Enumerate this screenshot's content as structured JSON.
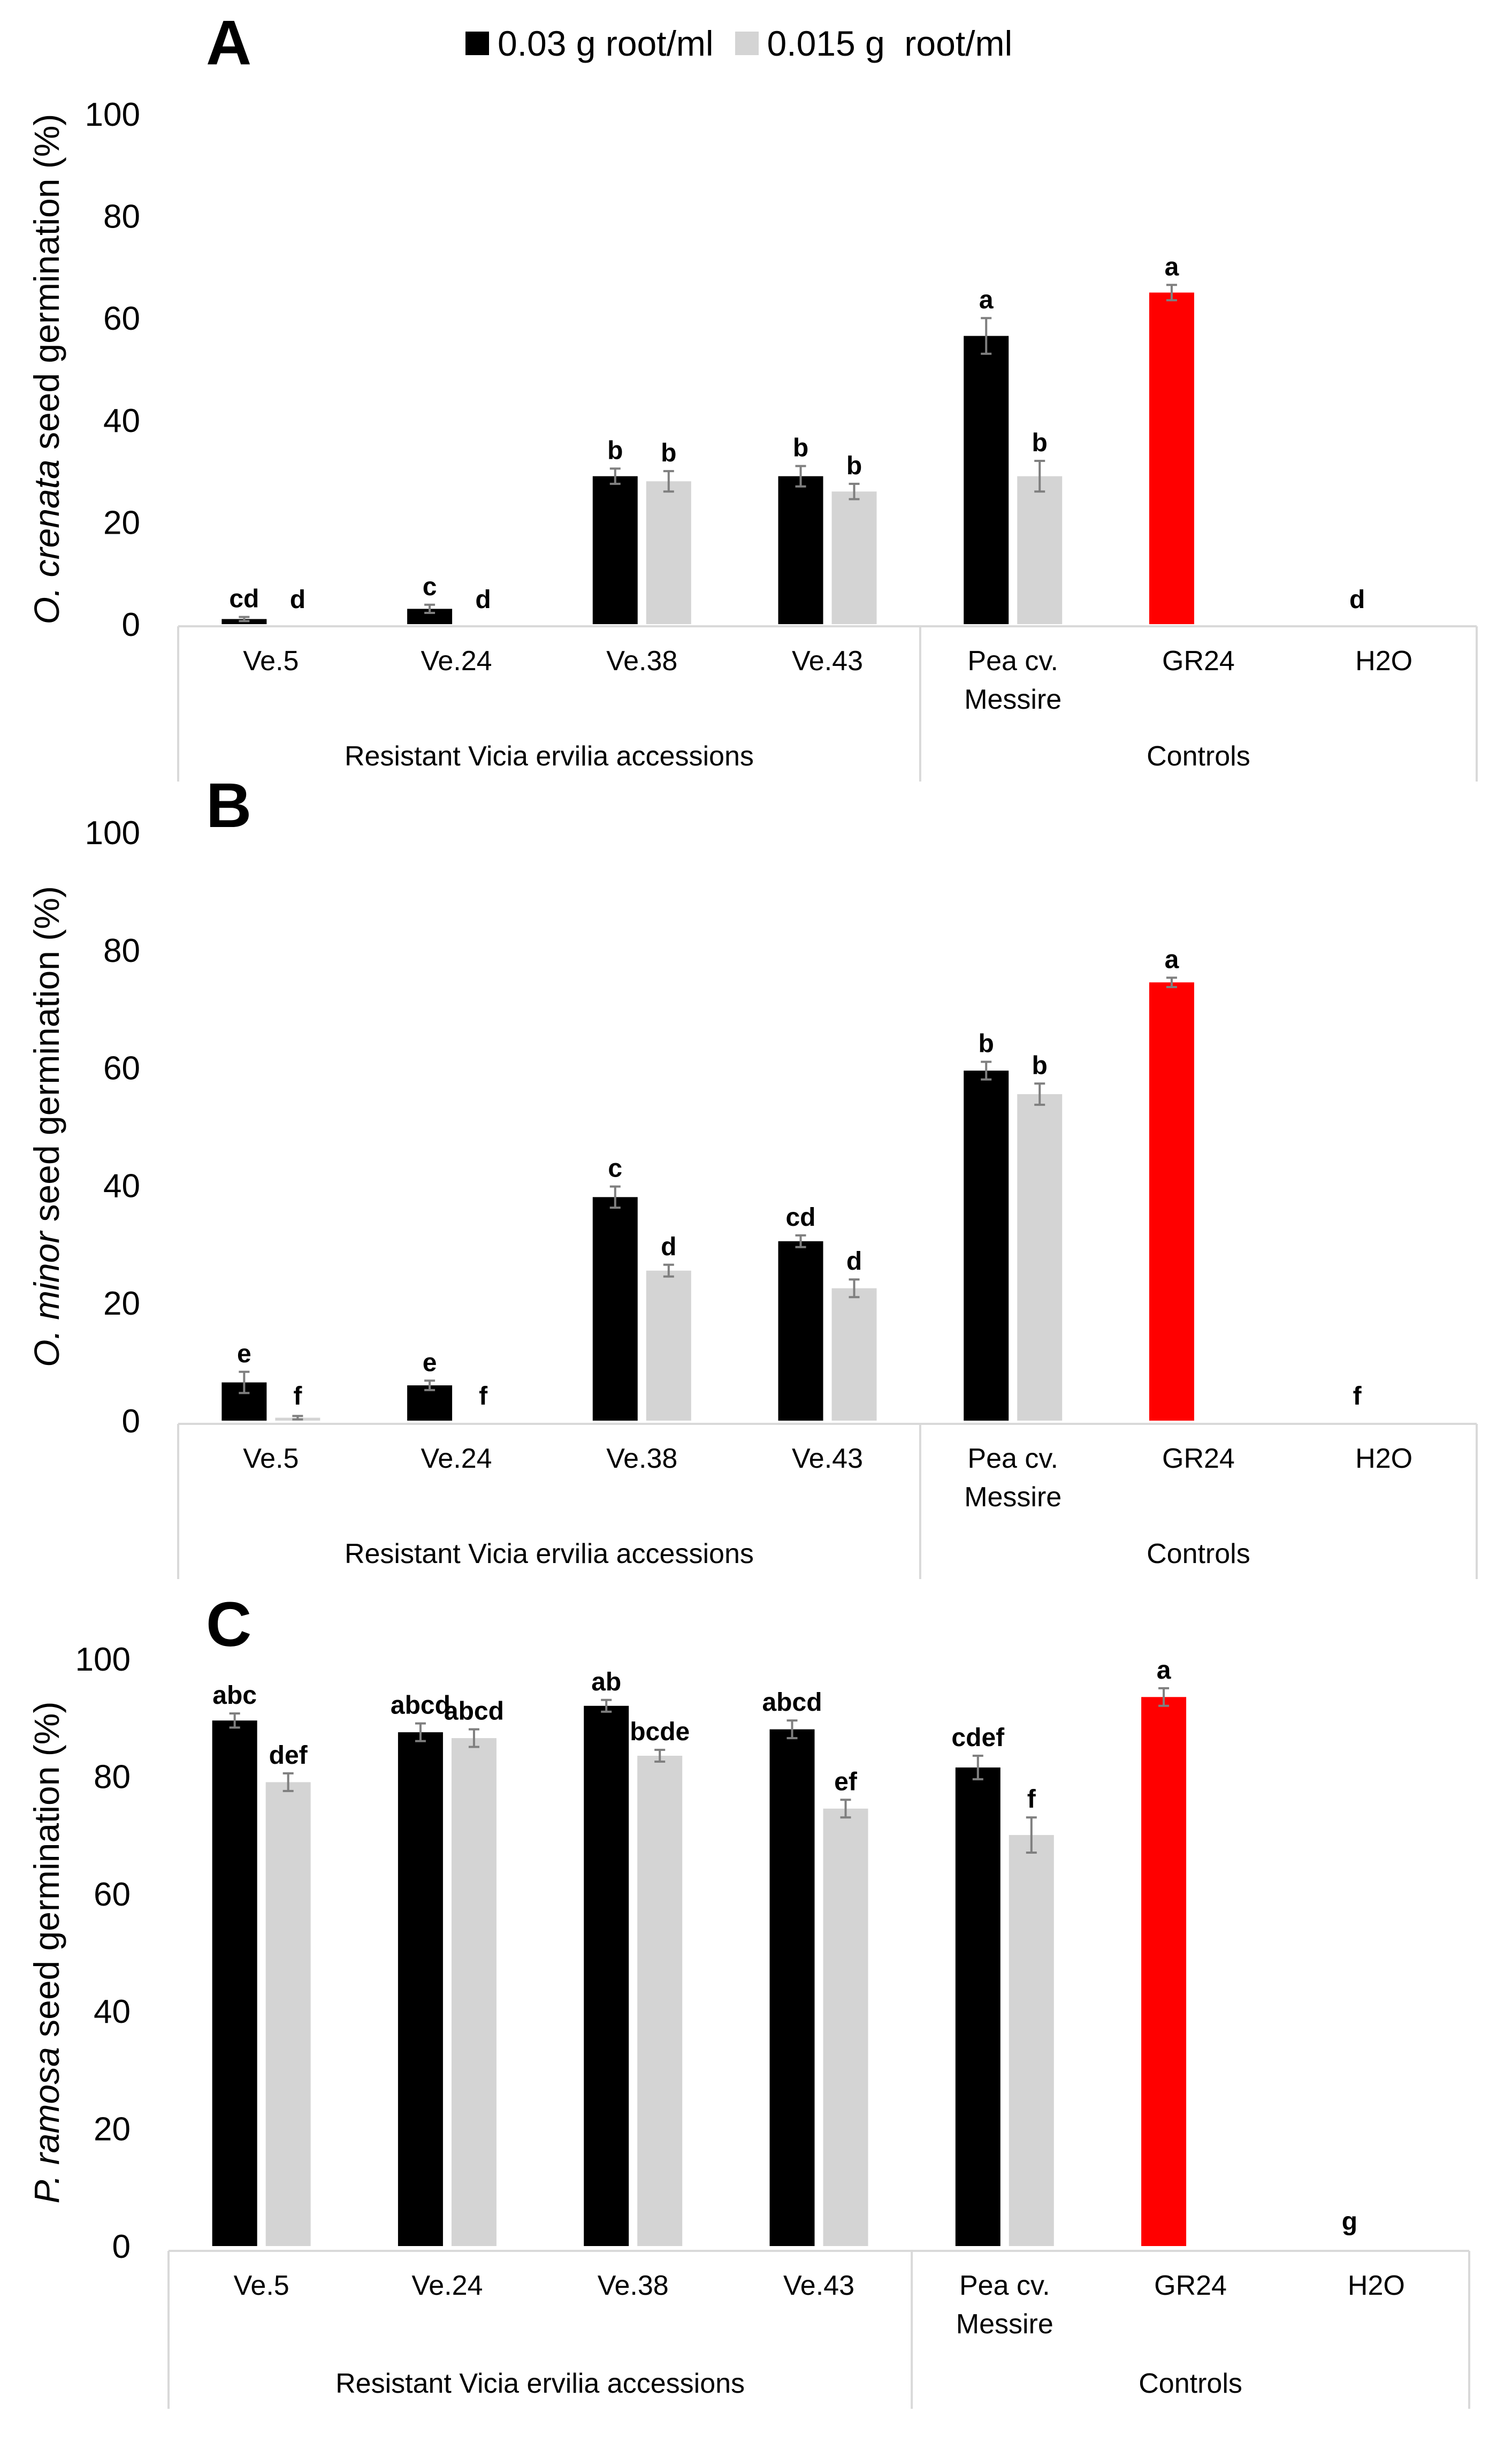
{
  "legend": {
    "items": [
      {
        "label": "0.03 g root/ml",
        "color": "#000000"
      },
      {
        "label": "0.015 g  root/ml",
        "color": "#d4d4d4"
      }
    ]
  },
  "colors": {
    "series1": "#000000",
    "series2": "#d4d4d4",
    "control_highlight": "#ff0000",
    "error_bar": "#7f7f7f",
    "axis": "#d9d9d9"
  },
  "chart_data": [
    {
      "panel_letter": "A",
      "type": "bar",
      "ylabel_italic": "O. crenata",
      "ylabel_rest": " seed germination (%)",
      "ylim": [
        0,
        100
      ],
      "yticks": [
        "0",
        "20",
        "40",
        "60",
        "80",
        "100"
      ],
      "categories": [
        "Ve.5",
        "Ve.24",
        "Ve.38",
        "Ve.43",
        "Pea cv. Messire",
        "GR24",
        "H2O"
      ],
      "category_label_lines": [
        [
          "Ve.5"
        ],
        [
          "Ve.24"
        ],
        [
          "Ve.38"
        ],
        [
          "Ve.43"
        ],
        [
          "Pea cv.",
          "Messire"
        ],
        [
          "GR24"
        ],
        [
          "H2O"
        ]
      ],
      "groups": [
        {
          "label": "Resistant Vicia ervilia accessions",
          "span": [
            0,
            3
          ]
        },
        {
          "label": "Controls",
          "span": [
            4,
            6
          ]
        }
      ],
      "series": [
        {
          "name": "0.03 g root/ml",
          "values": [
            1,
            3,
            29,
            29,
            56.5,
            null,
            null
          ],
          "errors": [
            0.4,
            0.8,
            1.5,
            2,
            3.5,
            null,
            null
          ],
          "letters": [
            "cd",
            "c",
            "b",
            "b",
            "a",
            null,
            null
          ]
        },
        {
          "name": "0.015 g  root/ml",
          "values": [
            0,
            0,
            28,
            26,
            29,
            null,
            null
          ],
          "errors": [
            0,
            0,
            2,
            1.5,
            3,
            null,
            null
          ],
          "letters": [
            "d",
            "d",
            "b",
            "b",
            "b",
            null,
            null
          ]
        }
      ],
      "control_bars": [
        {
          "category_index": 5,
          "value": 65,
          "error": 1.5,
          "letter": "a"
        },
        {
          "category_index": 6,
          "value": 0,
          "error": 0,
          "letter": "d"
        }
      ]
    },
    {
      "panel_letter": "B",
      "type": "bar",
      "ylabel_italic": "O. minor",
      "ylabel_rest": " seed germination (%)",
      "ylim": [
        0,
        100
      ],
      "yticks": [
        "0",
        "20",
        "40",
        "60",
        "80",
        "100"
      ],
      "categories": [
        "Ve.5",
        "Ve.24",
        "Ve.38",
        "Ve.43",
        "Pea cv. Messire",
        "GR24",
        "H2O"
      ],
      "category_label_lines": [
        [
          "Ve.5"
        ],
        [
          "Ve.24"
        ],
        [
          "Ve.38"
        ],
        [
          "Ve.43"
        ],
        [
          "Pea cv.",
          "Messire"
        ],
        [
          "GR24"
        ],
        [
          "H2O"
        ]
      ],
      "groups": [
        {
          "label": "Resistant Vicia ervilia accessions",
          "span": [
            0,
            3
          ]
        },
        {
          "label": "Controls",
          "span": [
            4,
            6
          ]
        }
      ],
      "series": [
        {
          "name": "0.03 g root/ml",
          "values": [
            6.5,
            6,
            38,
            30.5,
            59.5,
            null,
            null
          ],
          "errors": [
            1.8,
            0.8,
            1.8,
            1,
            1.5,
            null,
            null
          ],
          "letters": [
            "e",
            "e",
            "c",
            "cd",
            "b",
            null,
            null
          ]
        },
        {
          "name": "0.015 g  root/ml",
          "values": [
            0.5,
            0,
            25.5,
            22.5,
            55.5,
            null,
            null
          ],
          "errors": [
            0.3,
            0,
            1,
            1.5,
            1.8,
            null,
            null
          ],
          "letters": [
            "f",
            "f",
            "d",
            "d",
            "b",
            null,
            null
          ]
        }
      ],
      "control_bars": [
        {
          "category_index": 5,
          "value": 74.5,
          "error": 0.8,
          "letter": "a"
        },
        {
          "category_index": 6,
          "value": 0,
          "error": 0,
          "letter": "f"
        }
      ]
    },
    {
      "panel_letter": "C",
      "type": "bar",
      "ylabel_italic": "P. ramosa",
      "ylabel_rest": " seed germination (%)",
      "ylim": [
        0,
        100
      ],
      "yticks": [
        "0",
        "20",
        "40",
        "60",
        "80",
        "100"
      ],
      "categories": [
        "Ve.5",
        "Ve.24",
        "Ve.38",
        "Ve.43",
        "Pea cv. Messire",
        "GR24",
        "H2O"
      ],
      "category_label_lines": [
        [
          "Ve.5"
        ],
        [
          "Ve.24"
        ],
        [
          "Ve.38"
        ],
        [
          "Ve.43"
        ],
        [
          "Pea cv.",
          "Messire"
        ],
        [
          "GR24"
        ],
        [
          "H2O"
        ]
      ],
      "groups": [
        {
          "label": "Resistant Vicia ervilia accessions",
          "span": [
            0,
            3
          ]
        },
        {
          "label": "Controls",
          "span": [
            4,
            6
          ]
        }
      ],
      "series": [
        {
          "name": "0.03 g root/ml",
          "values": [
            89.5,
            87.5,
            92,
            88,
            81.5,
            null,
            null
          ],
          "errors": [
            1.2,
            1.5,
            1,
            1.5,
            2,
            null,
            null
          ],
          "letters": [
            "abc",
            "abcd",
            "ab",
            "abcd",
            "cdef",
            null,
            null
          ]
        },
        {
          "name": "0.015 g  root/ml",
          "values": [
            79,
            86.5,
            83.5,
            74.5,
            70,
            null,
            null
          ],
          "errors": [
            1.5,
            1.5,
            1,
            1.5,
            3,
            null,
            null
          ],
          "letters": [
            "def",
            "abcd",
            "bcde",
            "ef",
            "f",
            null,
            null
          ]
        }
      ],
      "control_bars": [
        {
          "category_index": 5,
          "value": 93.5,
          "error": 1.5,
          "letter": "a"
        },
        {
          "category_index": 6,
          "value": 0,
          "error": 0,
          "letter": "g"
        }
      ]
    }
  ]
}
